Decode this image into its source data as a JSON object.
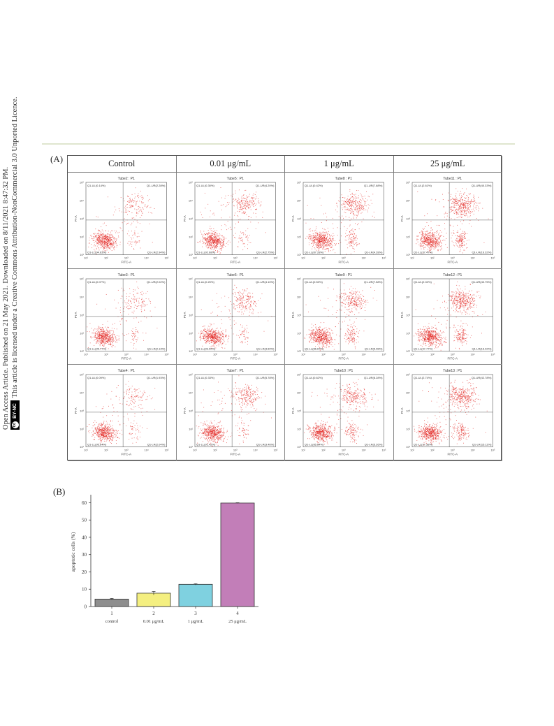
{
  "side_notice": {
    "line1": "Open Access Article. Published on 21 May 2021. Downloaded on 8/11/2021 8:47:32 PM.",
    "line2": "This article is licensed under a Creative Commons Attribution-NonCommercial 3.0 Unported Licence.",
    "badge_cc": "cc",
    "badge_text": "BY-NC"
  },
  "panel_a": {
    "label": "(A)",
    "columns": [
      "Control",
      "0.01 μg/mL",
      "1 μg/mL",
      "25 μg/mL"
    ],
    "axis_x": "FITC-A",
    "axis_y": "PI-A",
    "ticks": [
      "10¹",
      "10²",
      "10³",
      "10⁴",
      "10⁵"
    ],
    "plots": [
      {
        "tube": "Tube2 : P1",
        "ul": "Q1-UL(0.14%)",
        "ur": "Q1-UR(2.28%)",
        "ll": "Q1-LL(94.63%)",
        "lr": "Q1-LR(2.94%)",
        "ur_pop": 0.15,
        "lr_pop": 0.05
      },
      {
        "tube": "Tube5 : P1",
        "ul": "Q1-UL(0.30%)",
        "ur": "Q1-UR(4.20%)",
        "ll": "Q1-LL(92.68%)",
        "lr": "Q1-LR(2.75%)",
        "ur_pop": 0.3,
        "lr_pop": 0.05
      },
      {
        "tube": "Tube8 : P1",
        "ul": "Q1-UL(0.42%)",
        "ur": "Q1-UR(7.68%)",
        "ll": "Q1-LL(87.28%)",
        "lr": "Q1-LR(4.28%)",
        "ur_pop": 0.4,
        "lr_pop": 0.2
      },
      {
        "tube": "Tube11 : P1",
        "ul": "Q1-UL(2.61%)",
        "ur": "Q1-UR(40.33%)",
        "ll": "Q1-LL(37.47%)",
        "lr": "Q1-LR(16.32%)",
        "ur_pop": 0.55,
        "lr_pop": 0.3
      },
      {
        "tube": "Tube3 : P1",
        "ul": "Q1-UL(0.07%)",
        "ur": "Q1-UR(2.02%)",
        "ll": "Q1-LL(95.77%)",
        "lr": "Q1-LR(2.13%)",
        "ur_pop": 0.12,
        "lr_pop": 0.05
      },
      {
        "tube": "Tube6 : P1",
        "ul": "Q1-UL(0.20%)",
        "ur": "Q1-UR(4.10%)",
        "ll": "Q1-LL(93.00%)",
        "lr": "Q1-LR(3.60%)",
        "ur_pop": 0.25,
        "lr_pop": 0.05
      },
      {
        "tube": "Tube9 : P1",
        "ul": "Q1-UL(0.53%)",
        "ur": "Q1-UR(7.58%)",
        "ll": "Q1-LL(86.67%)",
        "lr": "Q1-LR(5.08%)",
        "ur_pop": 0.35,
        "lr_pop": 0.22
      },
      {
        "tube": "Tube12 : P1",
        "ul": "Q1-UL(2.02%)",
        "ur": "Q1-UR(40.75%)",
        "ll": "Q1-LL(37.77%)",
        "lr": "Q1-LR(16.02%)",
        "ur_pop": 0.55,
        "lr_pop": 0.3
      },
      {
        "tube": "Tube4 : P1",
        "ul": "Q1-UL(0.09%)",
        "ur": "Q1-UR(1.93%)",
        "ll": "Q1-LL(95.64%)",
        "lr": "Q1-LR(2.04%)",
        "ur_pop": 0.1,
        "lr_pop": 0.05
      },
      {
        "tube": "Tube7 : P1",
        "ul": "Q1-UL(0.33%)",
        "ur": "Q1-UR(5.78%)",
        "ll": "Q1-LL(91.42%)",
        "lr": "Q1-LR(3.46%)",
        "ur_pop": 0.3,
        "lr_pop": 0.07
      },
      {
        "tube": "Tube10 : P1",
        "ul": "Q1-UL(0.62%)",
        "ur": "Q1-UR(8.28%)",
        "ll": "Q1-LL(85.84%)",
        "lr": "Q1-LR(5.26%)",
        "ur_pop": 0.35,
        "lr_pop": 0.22
      },
      {
        "tube": "Tube13 : P1",
        "ul": "Q1-UL(2.74%)",
        "ur": "Q1-UR(42.78%)",
        "ll": "Q1-LL(37.38%)",
        "lr": "Q1-LR(15.11%)",
        "ur_pop": 0.55,
        "lr_pop": 0.3
      }
    ]
  },
  "panel_b": {
    "label": "(B)"
  },
  "chart_data": {
    "type": "bar",
    "categories": [
      "1",
      "2",
      "3",
      "4"
    ],
    "sublabels": [
      "control",
      "0.01 μg/mL",
      "1 μg/mL",
      "25 μg/mL"
    ],
    "values": [
      4.3,
      7.7,
      12.8,
      59.8
    ],
    "errors": [
      0.4,
      1.0,
      0.4,
      0.2
    ],
    "colors": [
      "#8e8e8e",
      "#f4ef80",
      "#7fd1e0",
      "#c27eb8"
    ],
    "ylabel": "apoptotic cells (%)",
    "xlabel": "",
    "ylim": [
      0,
      63
    ],
    "yticks": [
      "0",
      "10",
      "20",
      "30",
      "40",
      "50",
      "60"
    ]
  }
}
